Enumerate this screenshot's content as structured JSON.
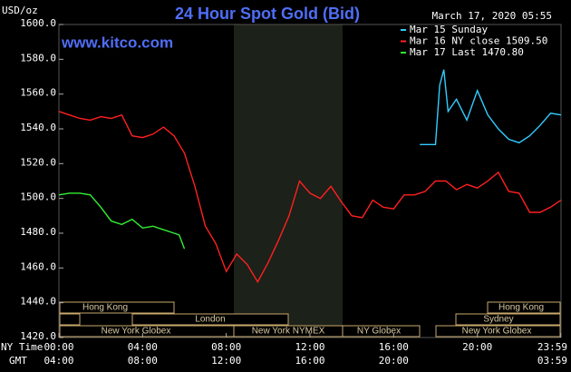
{
  "chart_data": {
    "type": "line",
    "title": "24 Hour Spot Gold (Bid)",
    "y_label": "USD/oz",
    "watermark": "www.kitco.com",
    "timestamp": "March 17, 2020 05:55",
    "x_label": "NY Time",
    "x2_label": "GMT",
    "xlim": [
      0,
      24
    ],
    "ylim": [
      1420,
      1600
    ],
    "yticks": [
      {
        "value": 1420,
        "label": "1420.0"
      },
      {
        "value": 1440,
        "label": "1440.0"
      },
      {
        "value": 1460,
        "label": "1460.0"
      },
      {
        "value": 1480,
        "label": "1480.0"
      },
      {
        "value": 1500,
        "label": "1500.0"
      },
      {
        "value": 1520,
        "label": "1520.0"
      },
      {
        "value": 1540,
        "label": "1540.0"
      },
      {
        "value": 1560,
        "label": "1560.0"
      },
      {
        "value": 1580,
        "label": "1580.0"
      },
      {
        "value": 1600,
        "label": "1600.0"
      }
    ],
    "xticks": [
      {
        "value": 0,
        "label": "00:00"
      },
      {
        "value": 4,
        "label": "04:00"
      },
      {
        "value": 8,
        "label": "08:00"
      },
      {
        "value": 12,
        "label": "12:00"
      },
      {
        "value": 16,
        "label": "16:00"
      },
      {
        "value": 20,
        "label": "20:00"
      },
      {
        "value": 23.983,
        "label": "23:59"
      }
    ],
    "x2ticks": [
      {
        "value": 0,
        "label": "04:00"
      },
      {
        "value": 4,
        "label": "08:00"
      },
      {
        "value": 8,
        "label": "12:00"
      },
      {
        "value": 12,
        "label": "16:00"
      },
      {
        "value": 16,
        "label": "20:00"
      },
      {
        "value": 23.983,
        "label": "03:59"
      }
    ],
    "series": [
      {
        "name": "Mar 15 Sunday",
        "color": "#33ccff",
        "x": [
          17.25,
          18,
          18.2,
          18.4,
          18.6,
          19,
          19.5,
          20,
          20.5,
          21,
          21.5,
          22,
          22.5,
          23,
          23.5,
          24
        ],
        "values": [
          1531,
          1531,
          1565,
          1574,
          1550,
          1557,
          1545,
          1562,
          1548,
          1540,
          1534,
          1532,
          1536,
          1542,
          1549,
          1548
        ]
      },
      {
        "name": "Mar 16 NY close 1509.50",
        "color": "#ff2020",
        "x": [
          0,
          0.5,
          1,
          1.5,
          2,
          2.5,
          3,
          3.5,
          4,
          4.5,
          5,
          5.5,
          6,
          6.5,
          7,
          7.5,
          8,
          8.5,
          9,
          9.5,
          10,
          10.5,
          11,
          11.5,
          12,
          12.5,
          13,
          13.5,
          14,
          14.5,
          15,
          15.5,
          16,
          16.5,
          17,
          17.5,
          18,
          18.5,
          19,
          19.5,
          20,
          20.5,
          21,
          21.5,
          22,
          22.5,
          23,
          23.5,
          24
        ],
        "values": [
          1550,
          1548,
          1546,
          1545,
          1547,
          1546,
          1548,
          1536,
          1535,
          1537,
          1541,
          1536,
          1526,
          1507,
          1484,
          1474,
          1458,
          1468,
          1462,
          1452,
          1463,
          1476,
          1490,
          1510,
          1503,
          1500,
          1507,
          1498,
          1490,
          1489,
          1499,
          1495,
          1494,
          1502,
          1502,
          1504,
          1510,
          1510,
          1505,
          1508,
          1506,
          1510,
          1515,
          1504,
          1503,
          1492,
          1492,
          1495,
          1499
        ]
      },
      {
        "name": "Mar 17 Last 1470.80",
        "color": "#33ee33",
        "x": [
          0,
          0.5,
          1,
          1.5,
          2,
          2.5,
          3,
          3.5,
          4,
          4.5,
          5,
          5.5,
          5.75,
          6
        ],
        "values": [
          1502,
          1503,
          1503,
          1502,
          1495,
          1487,
          1485,
          1488,
          1483,
          1484,
          1482,
          1480,
          1479,
          1471
        ]
      }
    ]
  },
  "sessions": [
    {
      "label": "Hong Kong"
    },
    {
      "label": "London"
    },
    {
      "label": "New York Globex"
    },
    {
      "label": "New York NYMEX"
    },
    {
      "label": "NY Globex"
    },
    {
      "label": "Hong Kong"
    },
    {
      "label": "Sydney"
    },
    {
      "label": "New York Globex"
    }
  ]
}
